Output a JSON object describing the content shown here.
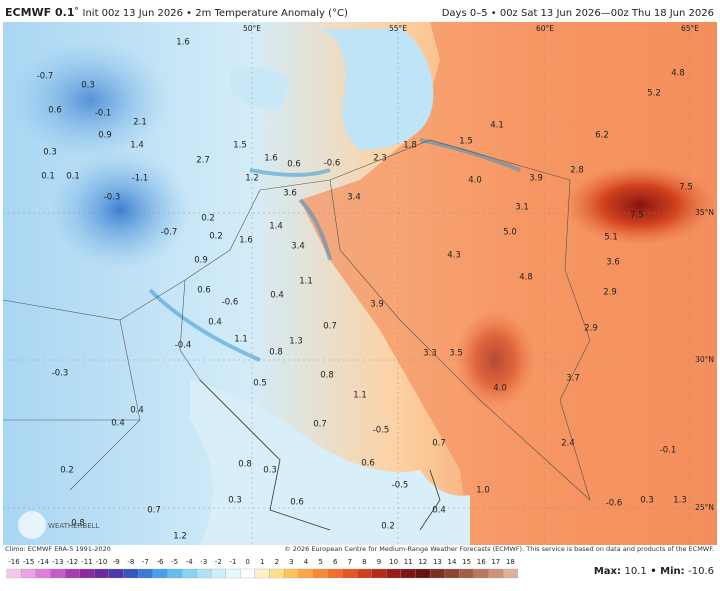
{
  "header": {
    "model": "ECMWF 0.1",
    "degree": "°",
    "title": "Init 00z 13 Jun 2026 • 2m Temperature Anomaly (°C)",
    "period": "Days 0–5 • 00z Sat 13 Jun 2026—00z Thu 18 Jun 2026"
  },
  "map": {
    "lon_labels": [
      "50°E",
      "55°E",
      "60°E",
      "65°E"
    ],
    "lat_labels": [
      "35°N",
      "30°N",
      "25°N"
    ],
    "labels": [
      "-0.7",
      "0.6",
      "0.3",
      "0.1",
      "0.1",
      "-0.3",
      "2.1",
      "1.4",
      "-1.1",
      "0.9",
      "-0.1",
      "0.3",
      "1.6",
      "1.5",
      "2.7",
      "1.2",
      "1.6",
      "0.6",
      "-0.6",
      "2.3",
      "1.8",
      "1.5",
      "4.1",
      "4.0",
      "3.9",
      "2.8",
      "6.2",
      "5.2",
      "4.8",
      "7.5",
      "7.5",
      "5.1",
      "3.1",
      "5.0",
      "4.3",
      "4.8",
      "3.6",
      "2.9",
      "2.9",
      "3.6",
      "3.4",
      "0.2",
      "0.2",
      "1.6",
      "1.4",
      "3.4",
      "-0.7",
      "0.9",
      "1.1",
      "0.6",
      "-0.6",
      "0.4",
      "0.4",
      "1.1",
      "0.8",
      "1.3",
      "0.7",
      "3.9",
      "3.3",
      "3.5",
      "4.0",
      "3.7",
      "-0.4",
      "-0.3",
      "0.5",
      "0.8",
      "1.1",
      "0.4",
      "0.4",
      "0.7",
      "-0.5",
      "0.7",
      "2.4",
      "-0.1",
      "0.8",
      "0.3",
      "0.6",
      "-0.5",
      "0.2",
      "0.3",
      "0.6",
      "0.7",
      "0.2",
      "0.8",
      "1.2",
      "0.4",
      "1.0",
      "-0.6",
      "0.3",
      "1.3"
    ],
    "logo": "WEATHERBELL"
  },
  "footer": {
    "climo": "Climo: ECMWF ERA-5 1991-2020",
    "copyright": "© 2026 European Centre for Medium-Range Weather Forecasts (ECMWF). This service is based on data and products of the ECMWF.",
    "max_label": "Max:",
    "max": 10.1,
    "min_label": "Min:",
    "min": -10.6,
    "separator": "•"
  },
  "colorbar": {
    "ticks": [
      -16,
      -15,
      -14,
      -13,
      -12,
      -11,
      -10,
      -9,
      -8,
      -7,
      -6,
      -5,
      -4,
      -3,
      -2,
      -1,
      0,
      1,
      2,
      3,
      4,
      5,
      6,
      7,
      8,
      9,
      10,
      11,
      12,
      13,
      14,
      15,
      16,
      17,
      18
    ],
    "colors": [
      "#f7c6ef",
      "#eda2e6",
      "#dd7ed9",
      "#c65ac8",
      "#a93bb4",
      "#8a2aa2",
      "#6b2a9e",
      "#4b3aa8",
      "#3555c0",
      "#3d7ad6",
      "#4d9ee8",
      "#62bdf2",
      "#86d3f6",
      "#aee2f8",
      "#cdeefa",
      "#e8f7fc",
      "#ffffff",
      "#fff3c4",
      "#ffe08a",
      "#ffc35a",
      "#ffa640",
      "#f98a34",
      "#f0702b",
      "#e45725",
      "#d03f1f",
      "#b52a1a",
      "#9a1c16",
      "#7e1414",
      "#6a1010",
      "#7a2f20",
      "#8e4630",
      "#a35e44",
      "#b8785c",
      "#cb9478",
      "#ddb29a"
    ]
  }
}
